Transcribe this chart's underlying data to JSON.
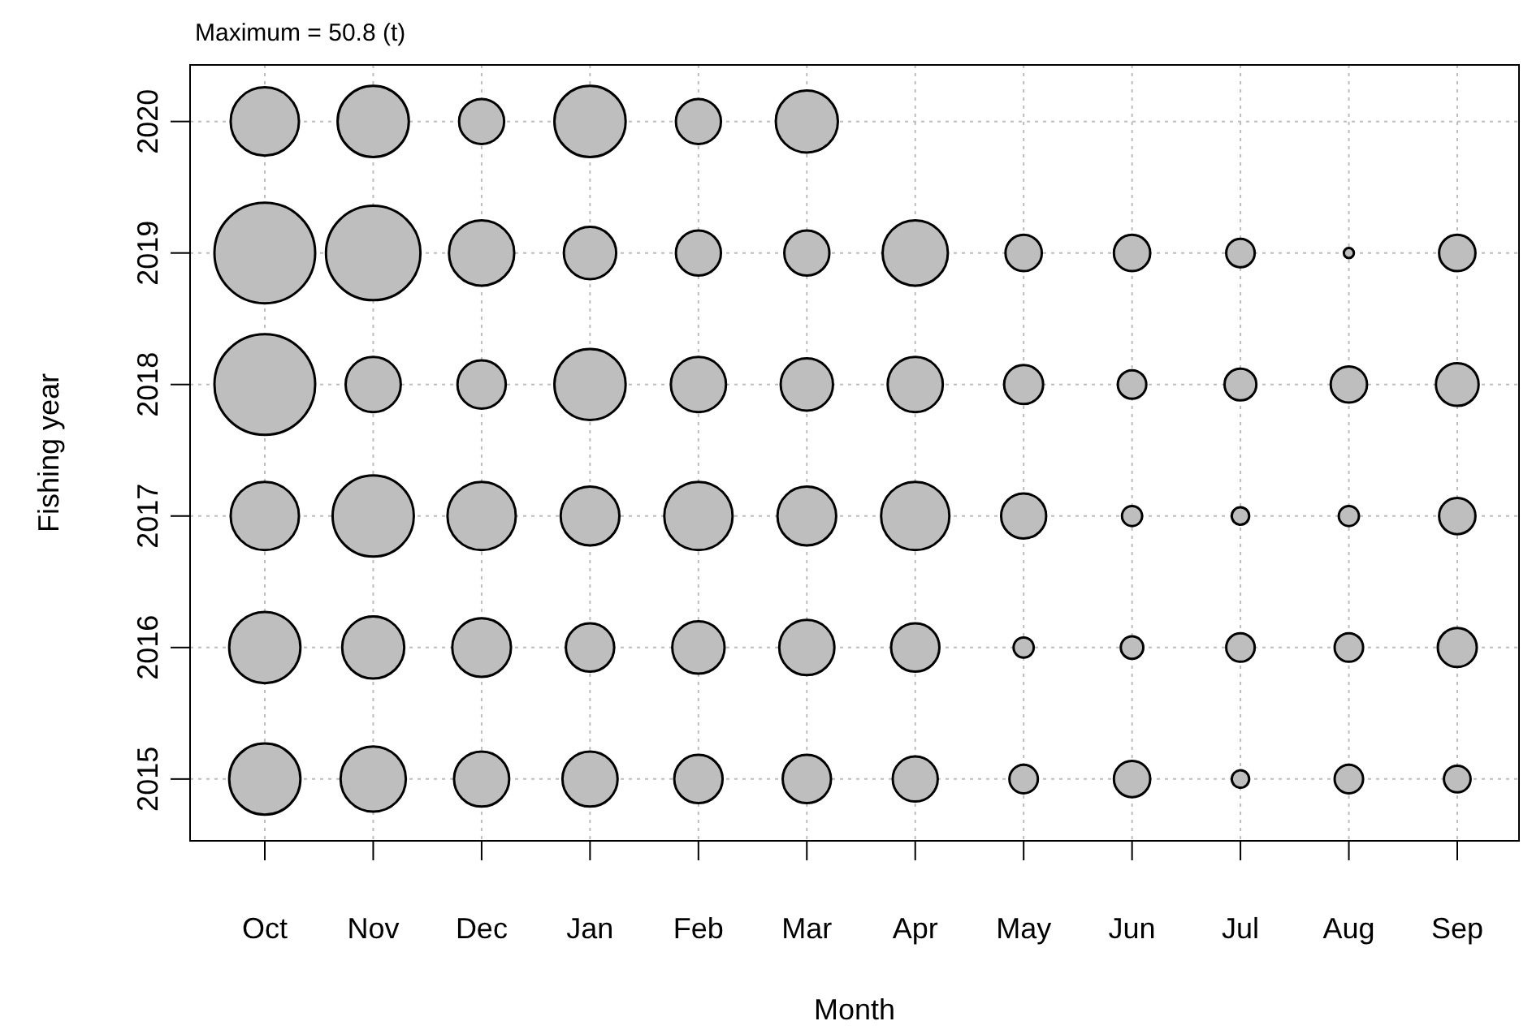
{
  "chart_data": {
    "type": "bubble",
    "title": "Maximum = 50.8 (t)",
    "xlabel": "Month",
    "ylabel": "Fishing year",
    "categories": [
      "Oct",
      "Nov",
      "Dec",
      "Jan",
      "Feb",
      "Mar",
      "Apr",
      "May",
      "Jun",
      "Jul",
      "Aug",
      "Sep"
    ],
    "ylim": [
      2014.53,
      2020.43
    ],
    "yticks": [
      2015,
      2016,
      2017,
      2018,
      2019,
      2020
    ],
    "grid": true,
    "marker": "circle",
    "series": [
      {
        "color": "#bebebe",
        "values": [
          2015,
          2015,
          2015,
          2015,
          2015,
          2015,
          2015,
          2015,
          2015,
          2015,
          2015,
          2015
        ],
        "sizes": [
          0.5,
          0.42,
          0.3,
          0.3,
          0.23,
          0.23,
          0.2,
          0.08,
          0.13,
          0.03,
          0.08,
          0.07
        ]
      },
      {
        "color": "#bebebe",
        "values": [
          2016,
          2016,
          2016,
          2016,
          2016,
          2016,
          2016,
          2016,
          2016,
          2016,
          2016,
          2016
        ],
        "sizes": [
          0.5,
          0.38,
          0.34,
          0.23,
          0.27,
          0.3,
          0.23,
          0.04,
          0.05,
          0.08,
          0.08,
          0.15
        ]
      },
      {
        "color": "#bebebe",
        "values": [
          2017,
          2017,
          2017,
          2017,
          2017,
          2017,
          2017,
          2017,
          2017,
          2017,
          2017,
          2017
        ],
        "sizes": [
          0.46,
          0.65,
          0.46,
          0.34,
          0.46,
          0.34,
          0.46,
          0.2,
          0.04,
          0.03,
          0.04,
          0.13
        ]
      },
      {
        "color": "#bebebe",
        "values": [
          2018,
          2018,
          2018,
          2018,
          2018,
          2018,
          2018,
          2018,
          2018,
          2018,
          2018,
          2018
        ],
        "sizes": [
          1,
          0.3,
          0.23,
          0.5,
          0.3,
          0.27,
          0.3,
          0.15,
          0.08,
          0.1,
          0.13,
          0.18
        ]
      },
      {
        "color": "#bebebe",
        "values": [
          2019,
          2019,
          2019,
          2019,
          2019,
          2019,
          2019,
          2019,
          2019,
          2019,
          2019,
          2019
        ],
        "sizes": [
          1,
          0.88,
          0.42,
          0.27,
          0.2,
          0.2,
          0.42,
          0.13,
          0.13,
          0.08,
          0.01,
          0.13
        ]
      },
      {
        "color": "#bebebe",
        "values": [
          2020,
          2020,
          2020,
          2020,
          2020,
          2020,
          null,
          null,
          null,
          null,
          null,
          null
        ],
        "sizes": [
          0.46,
          0.5,
          0.2,
          0.5,
          0.2,
          0.38,
          null,
          null,
          null,
          null,
          null,
          null
        ]
      }
    ]
  }
}
